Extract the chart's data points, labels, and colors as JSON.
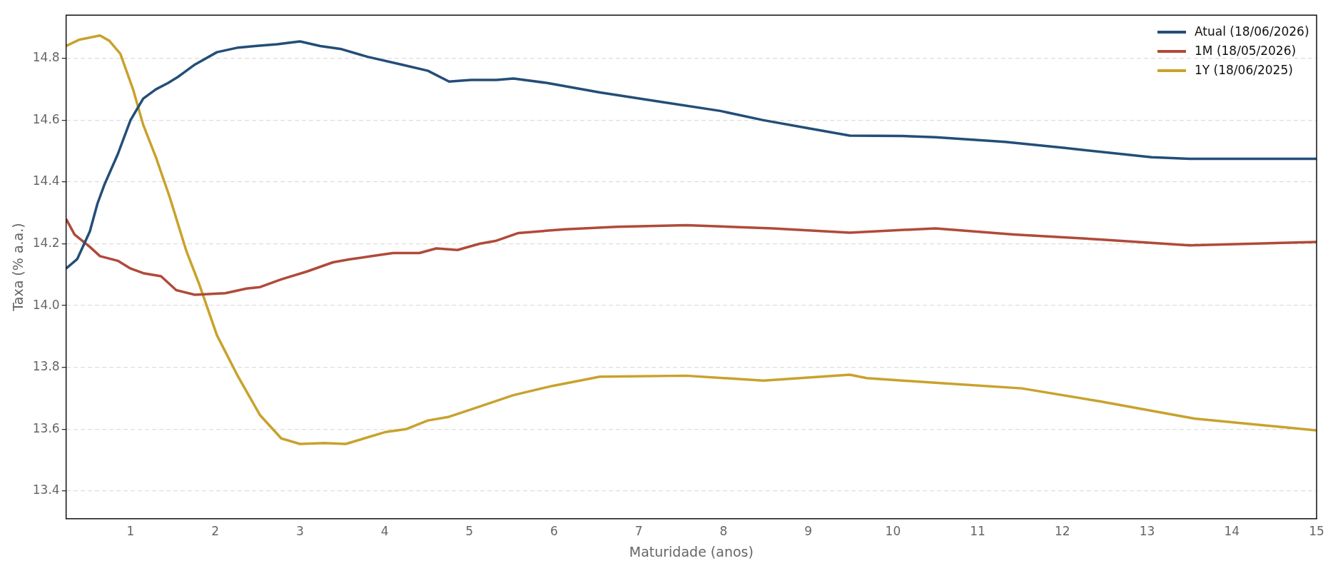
{
  "chart_data": {
    "type": "line",
    "xlabel": "Maturidade (anos)",
    "ylabel": "Taxa (% a.a.)",
    "xlim": [
      0.24,
      15
    ],
    "xticks": [
      1,
      2,
      3,
      4,
      5,
      6,
      7,
      8,
      9,
      10,
      11,
      12,
      13,
      14,
      15
    ],
    "ylim": [
      13.31,
      14.94
    ],
    "yticks": [
      13.4,
      13.6,
      13.8,
      {
        "value": 14,
        "label": "14.0"
      },
      14.2,
      14.4,
      14.6,
      14.8
    ],
    "grid": "y",
    "legend": "top right",
    "line_style": "solid",
    "marker": "none",
    "series": [
      {
        "name": "Atual (18/06/2026)",
        "color": "#234e78",
        "x": [
          0.24,
          0.37,
          0.52,
          0.61,
          0.69,
          0.85,
          1.0,
          1.15,
          1.3,
          1.44,
          1.56,
          1.76,
          2.02,
          2.27,
          2.47,
          2.73,
          3.0,
          3.24,
          3.49,
          3.8,
          4.2,
          4.51,
          4.76,
          5.02,
          5.32,
          5.52,
          5.93,
          6.54,
          7.25,
          7.96,
          8.47,
          8.98,
          9.49,
          10.1,
          10.5,
          11.32,
          12.03,
          13.05,
          13.5,
          15
        ],
        "values": [
          14.12,
          14.15,
          14.24,
          14.33,
          14.39,
          14.49,
          14.6,
          14.67,
          14.7,
          14.72,
          14.74,
          14.78,
          14.82,
          14.835,
          14.84,
          14.846,
          14.855,
          14.84,
          14.83,
          14.805,
          14.78,
          14.76,
          14.725,
          14.73,
          14.73,
          14.735,
          14.72,
          14.69,
          14.66,
          14.63,
          14.6,
          14.575,
          14.55,
          14.549,
          14.545,
          14.53,
          14.51,
          14.48,
          14.475,
          14.475
        ]
      },
      {
        "name": "1M (18/05/2026)",
        "color": "#b04a3a",
        "x": [
          0.24,
          0.34,
          0.52,
          0.64,
          0.85,
          1.0,
          1.15,
          1.36,
          1.54,
          1.76,
          2.12,
          2.37,
          2.53,
          2.78,
          3.08,
          3.39,
          3.59,
          3.85,
          4.1,
          4.41,
          4.61,
          4.86,
          5.12,
          5.32,
          5.58,
          6.13,
          6.74,
          7.56,
          8.58,
          9.49,
          10.5,
          11.42,
          12.44,
          13.5,
          15
        ],
        "values": [
          14.28,
          14.23,
          14.19,
          14.16,
          14.145,
          14.12,
          14.105,
          14.095,
          14.05,
          14.035,
          14.04,
          14.055,
          14.06,
          14.085,
          14.11,
          14.14,
          14.15,
          14.16,
          14.17,
          14.17,
          14.185,
          14.18,
          14.2,
          14.21,
          14.235,
          14.247,
          14.255,
          14.26,
          14.25,
          14.236,
          14.25,
          14.23,
          14.214,
          14.195,
          14.206
        ]
      },
      {
        "name": "1Y (18/06/2025)",
        "color": "#c9a22c",
        "x": [
          0.24,
          0.39,
          0.64,
          0.75,
          0.88,
          1.03,
          1.15,
          1.3,
          1.46,
          1.66,
          1.81,
          2.02,
          2.27,
          2.53,
          2.78,
          3.0,
          3.29,
          3.54,
          4.0,
          4.25,
          4.51,
          4.76,
          5.02,
          5.52,
          5.98,
          6.54,
          7.56,
          8.47,
          9.49,
          9.69,
          10.5,
          11.52,
          12.44,
          13.56,
          15
        ],
        "values": [
          14.84,
          14.86,
          14.874,
          14.857,
          14.815,
          14.7,
          14.585,
          14.48,
          14.353,
          14.176,
          14.07,
          13.904,
          13.77,
          13.645,
          13.57,
          13.552,
          13.555,
          13.552,
          13.59,
          13.6,
          13.628,
          13.64,
          13.664,
          13.71,
          13.74,
          13.77,
          13.773,
          13.757,
          13.776,
          13.765,
          13.75,
          13.732,
          13.69,
          13.634,
          13.596
        ]
      }
    ]
  }
}
